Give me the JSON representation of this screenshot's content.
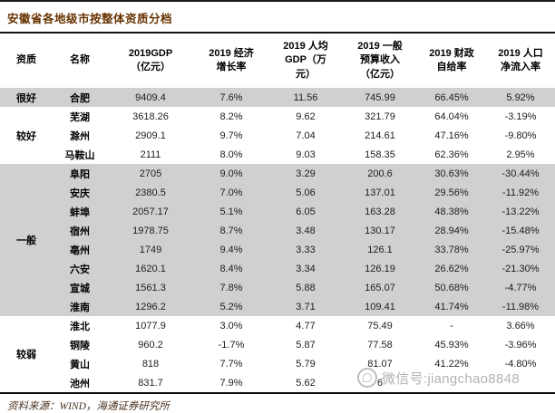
{
  "title": "安徽省各地级市按整体资质分档",
  "columns": [
    "资质",
    "名称",
    "2019GDP\n（亿元）",
    "2019 经济\n增长率",
    "2019 人均\nGDP（万\n元）",
    "2019 一般\n预算收入\n（亿元）",
    "2019 财政\n自给率",
    "2019 人口\n净流入率"
  ],
  "groups": [
    {
      "tier": "很好",
      "shaded": true,
      "rows": [
        {
          "name": "合肥",
          "gdp": "9409.4",
          "growth": "7.6%",
          "per_capita": "11.56",
          "revenue": "745.99",
          "fiscal": "66.45%",
          "inflow": "5.92%"
        }
      ]
    },
    {
      "tier": "较好",
      "shaded": false,
      "rows": [
        {
          "name": "芜湖",
          "gdp": "3618.26",
          "growth": "8.2%",
          "per_capita": "9.62",
          "revenue": "321.79",
          "fiscal": "64.04%",
          "inflow": "-3.19%"
        },
        {
          "name": "滁州",
          "gdp": "2909.1",
          "growth": "9.7%",
          "per_capita": "7.04",
          "revenue": "214.61",
          "fiscal": "47.16%",
          "inflow": "-9.80%"
        },
        {
          "name": "马鞍山",
          "gdp": "2111",
          "growth": "8.0%",
          "per_capita": "9.03",
          "revenue": "158.35",
          "fiscal": "62.36%",
          "inflow": "2.95%"
        }
      ]
    },
    {
      "tier": "一般",
      "shaded": true,
      "rows": [
        {
          "name": "阜阳",
          "gdp": "2705",
          "growth": "9.0%",
          "per_capita": "3.29",
          "revenue": "200.6",
          "fiscal": "30.63%",
          "inflow": "-30.44%"
        },
        {
          "name": "安庆",
          "gdp": "2380.5",
          "growth": "7.0%",
          "per_capita": "5.06",
          "revenue": "137.01",
          "fiscal": "29.56%",
          "inflow": "-11.92%"
        },
        {
          "name": "蚌埠",
          "gdp": "2057.17",
          "growth": "5.1%",
          "per_capita": "6.05",
          "revenue": "163.28",
          "fiscal": "48.38%",
          "inflow": "-13.22%"
        },
        {
          "name": "宿州",
          "gdp": "1978.75",
          "growth": "8.7%",
          "per_capita": "3.48",
          "revenue": "130.17",
          "fiscal": "28.94%",
          "inflow": "-15.48%"
        },
        {
          "name": "亳州",
          "gdp": "1749",
          "growth": "9.4%",
          "per_capita": "3.33",
          "revenue": "126.1",
          "fiscal": "33.78%",
          "inflow": "-25.97%"
        },
        {
          "name": "六安",
          "gdp": "1620.1",
          "growth": "8.4%",
          "per_capita": "3.34",
          "revenue": "126.19",
          "fiscal": "26.62%",
          "inflow": "-21.30%"
        },
        {
          "name": "宣城",
          "gdp": "1561.3",
          "growth": "7.8%",
          "per_capita": "5.88",
          "revenue": "165.07",
          "fiscal": "50.68%",
          "inflow": "-4.77%"
        },
        {
          "name": "淮南",
          "gdp": "1296.2",
          "growth": "5.2%",
          "per_capita": "3.71",
          "revenue": "109.41",
          "fiscal": "41.74%",
          "inflow": "-11.98%"
        }
      ]
    },
    {
      "tier": "较弱",
      "shaded": false,
      "rows": [
        {
          "name": "淮北",
          "gdp": "1077.9",
          "growth": "3.0%",
          "per_capita": "4.77",
          "revenue": "75.49",
          "fiscal": "-",
          "inflow": "3.66%"
        },
        {
          "name": "铜陵",
          "gdp": "960.2",
          "growth": "-1.7%",
          "per_capita": "5.87",
          "revenue": "77.58",
          "fiscal": "45.93%",
          "inflow": "-3.96%"
        },
        {
          "name": "黄山",
          "gdp": "818",
          "growth": "7.7%",
          "per_capita": "5.79",
          "revenue": "81.07",
          "fiscal": "41.22%",
          "inflow": "-4.80%"
        },
        {
          "name": "池州",
          "gdp": "831.7",
          "growth": "7.9%",
          "per_capita": "5.62",
          "revenue": "6",
          "fiscal": "",
          "inflow": ""
        }
      ]
    }
  ],
  "watermark": {
    "icon": "circle-logo",
    "text": "微信号:jiangchao8848"
  },
  "source": "资料来源：WIND，海通证券研究所",
  "colors": {
    "title_accent": "#663300",
    "row_shaded": "#d0d0d0",
    "watermark_gray": "#a8a8a8",
    "rule_black": "#111111"
  }
}
